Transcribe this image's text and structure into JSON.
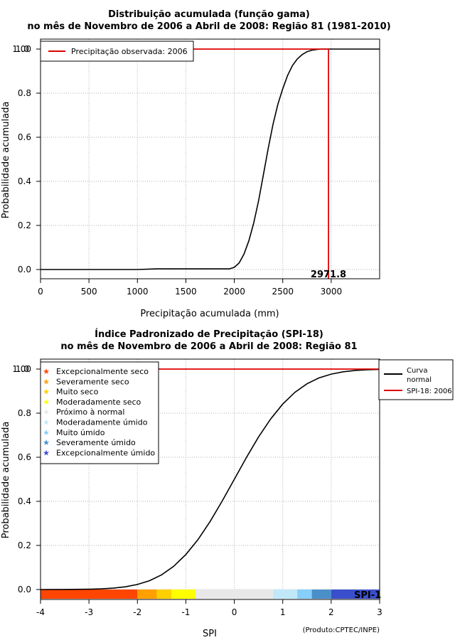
{
  "chart_data": [
    {
      "type": "line",
      "title": "Distribuição acumulada (função gama)",
      "subtitle": "no mês de Novembro de 2006 a Abril de 2008: Região 81 (1981-2010)",
      "xlabel": "Precipitação acumulada (mm)",
      "ylabel": "Probabilidade acumulada",
      "xlim": [
        0,
        3500
      ],
      "ylim": [
        0,
        1
      ],
      "x_ticks": [
        "0",
        "500",
        "1000",
        "1500",
        "2000",
        "2500",
        "3000"
      ],
      "y_ticks": [
        "0.0",
        "0.2",
        "0.4",
        "0.6",
        "0.8",
        "1.00"
      ],
      "y_top_overlap_label": "1.0",
      "grid": true,
      "series": [
        {
          "name": "CDF gama",
          "color": "#000000",
          "x": [
            0,
            1000,
            1200,
            1500,
            1800,
            1950,
            2000,
            2050,
            2100,
            2150,
            2200,
            2250,
            2300,
            2350,
            2400,
            2450,
            2500,
            2550,
            2600,
            2650,
            2700,
            2750,
            2800,
            2850,
            2900,
            2950,
            3000,
            3100,
            3500
          ],
          "y": [
            0.0,
            0.0,
            0.003,
            0.003,
            0.003,
            0.003,
            0.01,
            0.03,
            0.07,
            0.13,
            0.21,
            0.31,
            0.43,
            0.55,
            0.66,
            0.75,
            0.82,
            0.88,
            0.925,
            0.955,
            0.975,
            0.988,
            0.995,
            0.998,
            1.0,
            1.0,
            1.0,
            1.0,
            1.0
          ]
        }
      ],
      "observed": {
        "legend_label": "Precipitação observada: 2006",
        "value": 2971.8,
        "value_label": "2971.8",
        "probability": 1.0,
        "color": "#e00000"
      },
      "legend_position": "top-left"
    },
    {
      "type": "line",
      "title": "Índice Padronizado de Precipitação (SPI-18)",
      "subtitle": "no mês de Novembro de 2006 a Abril de 2008: Região 81",
      "xlabel": "SPI",
      "ylabel": "Probabilidade acumulada",
      "xlim": [
        -4,
        3
      ],
      "ylim": [
        0,
        1
      ],
      "x_ticks": [
        "-4",
        "-3",
        "-2",
        "-1",
        "0",
        "1",
        "2",
        "3"
      ],
      "y_ticks": [
        "0.0",
        "0.2",
        "0.4",
        "0.6",
        "0.8",
        "1.00"
      ],
      "y_top_overlap_label": "1.0",
      "grid": true,
      "series": [
        {
          "name": "Curva normal",
          "color": "#000000",
          "x": [
            -4,
            -3.5,
            -3,
            -2.75,
            -2.5,
            -2.25,
            -2,
            -1.75,
            -1.5,
            -1.25,
            -1,
            -0.75,
            -0.5,
            -0.25,
            0,
            0.25,
            0.5,
            0.75,
            1,
            1.25,
            1.5,
            1.75,
            2,
            2.25,
            2.5,
            2.75,
            3
          ],
          "y": [
            3e-05,
            0.0002,
            0.0013,
            0.003,
            0.0062,
            0.0122,
            0.0228,
            0.0401,
            0.0668,
            0.1056,
            0.1587,
            0.2266,
            0.3085,
            0.4013,
            0.5,
            0.5987,
            0.6915,
            0.7734,
            0.8413,
            0.8944,
            0.9332,
            0.9599,
            0.9772,
            0.9878,
            0.9938,
            0.997,
            0.9987
          ]
        }
      ],
      "observed": {
        "legend_label": "SPI-18: 2006",
        "value": 3,
        "value_label": "SPI-1",
        "probability": 1.0,
        "color": "#e00000"
      },
      "legend_curve_label_line1": "Curva",
      "legend_curve_label_line2": "normal",
      "categories": [
        {
          "label": "Excepcionalmente seco",
          "from": -4.0,
          "to": -2.0,
          "color": "#ff4500"
        },
        {
          "label": "Severamente seco",
          "from": -2.0,
          "to": -1.6,
          "color": "#ffa000"
        },
        {
          "label": "Muito seco",
          "from": -1.6,
          "to": -1.3,
          "color": "#ffd000"
        },
        {
          "label": "Moderadamente seco",
          "from": -1.3,
          "to": -0.8,
          "color": "#ffff00"
        },
        {
          "label": "Próximo à normal",
          "from": -0.8,
          "to": 0.8,
          "color": "#e8e8e8"
        },
        {
          "label": "Moderadamente úmido",
          "from": 0.8,
          "to": 1.3,
          "color": "#c0e8f8"
        },
        {
          "label": "Muito úmido",
          "from": 1.3,
          "to": 1.6,
          "color": "#87cefa"
        },
        {
          "label": "Severamente úmido",
          "from": 1.6,
          "to": 2.0,
          "color": "#4a90c8"
        },
        {
          "label": "Excepcionalmente úmido",
          "from": 2.0,
          "to": 3.0,
          "color": "#3a4fcc"
        }
      ],
      "legend_position": "top-left"
    }
  ],
  "credit": "(Produto:CPTEC/INPE)"
}
